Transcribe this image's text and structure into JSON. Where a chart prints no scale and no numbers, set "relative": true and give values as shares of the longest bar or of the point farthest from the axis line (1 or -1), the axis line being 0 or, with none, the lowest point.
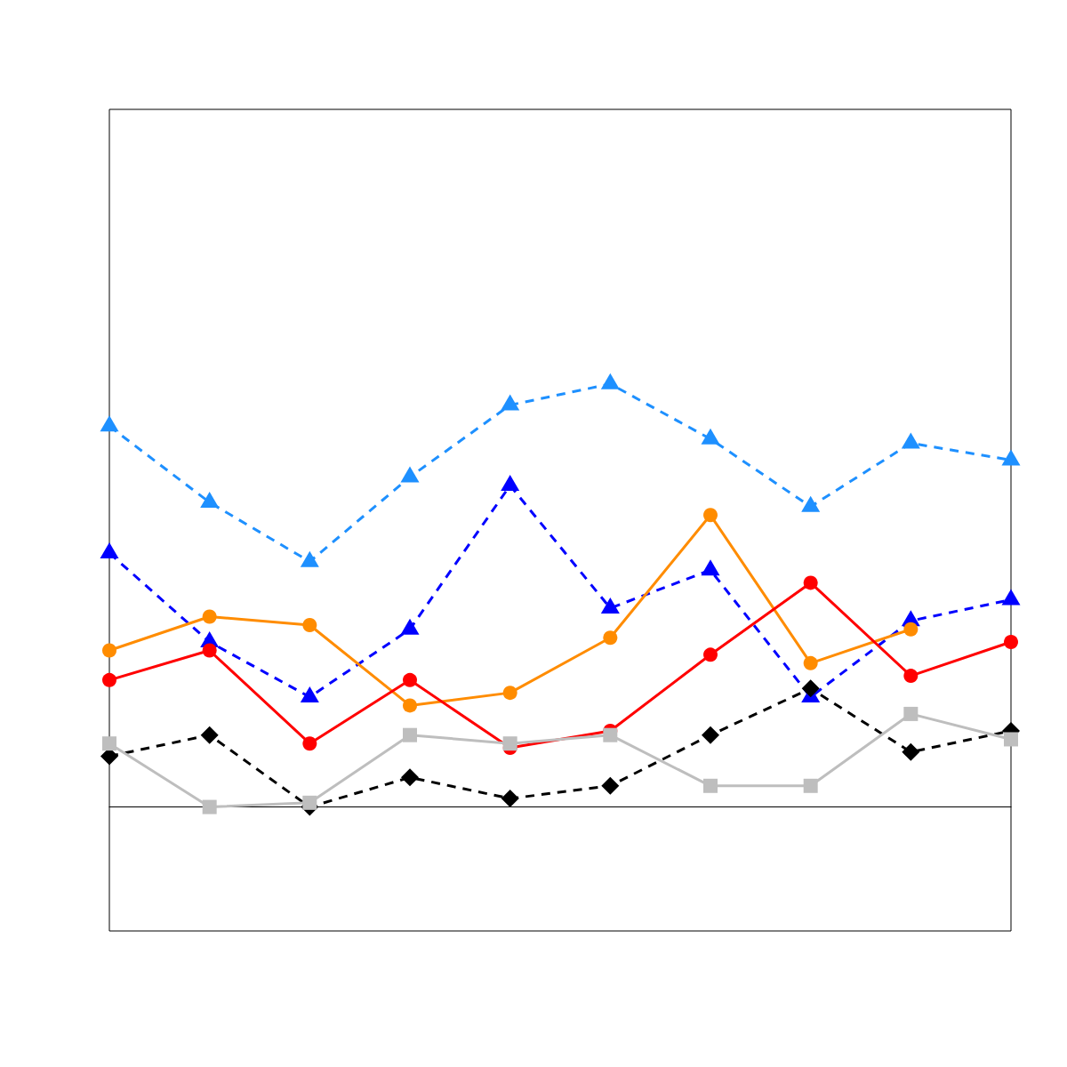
{
  "chart_data": {
    "type": "line",
    "relative": true,
    "categories": [
      null,
      null,
      null,
      null,
      null,
      null,
      null,
      null,
      null,
      null
    ],
    "series": [
      {
        "color": "#1e90ff",
        "marker": "triangle",
        "line_style": "dashed",
        "values": [
          0.9,
          0.72,
          0.58,
          0.78,
          0.95,
          1.0,
          0.87,
          0.71,
          0.86,
          0.82
        ]
      },
      {
        "color": "#0000ff",
        "marker": "triangle",
        "line_style": "dashed",
        "values": [
          0.6,
          0.39,
          0.26,
          0.42,
          0.76,
          0.47,
          0.56,
          0.26,
          0.44,
          0.49
        ]
      },
      {
        "color": "#ff8c00",
        "marker": "circle",
        "line_style": "solid",
        "values": [
          0.37,
          0.45,
          0.43,
          0.24,
          0.27,
          0.4,
          0.69,
          0.34,
          0.42,
          null
        ]
      },
      {
        "color": "#ff0000",
        "marker": "circle",
        "line_style": "solid",
        "values": [
          0.3,
          0.37,
          0.15,
          0.3,
          0.14,
          0.18,
          0.36,
          0.53,
          0.31,
          0.39
        ]
      },
      {
        "color": "#000000",
        "marker": "diamond",
        "line_style": "dashed",
        "values": [
          0.12,
          0.17,
          0.0,
          0.07,
          0.02,
          0.05,
          0.17,
          0.28,
          0.13,
          0.18
        ]
      },
      {
        "color": "#bebebe",
        "marker": "square",
        "line_style": "solid",
        "values": [
          0.15,
          0.0,
          0.01,
          0.17,
          0.15,
          0.17,
          0.05,
          0.05,
          0.22,
          0.16
        ]
      }
    ]
  }
}
